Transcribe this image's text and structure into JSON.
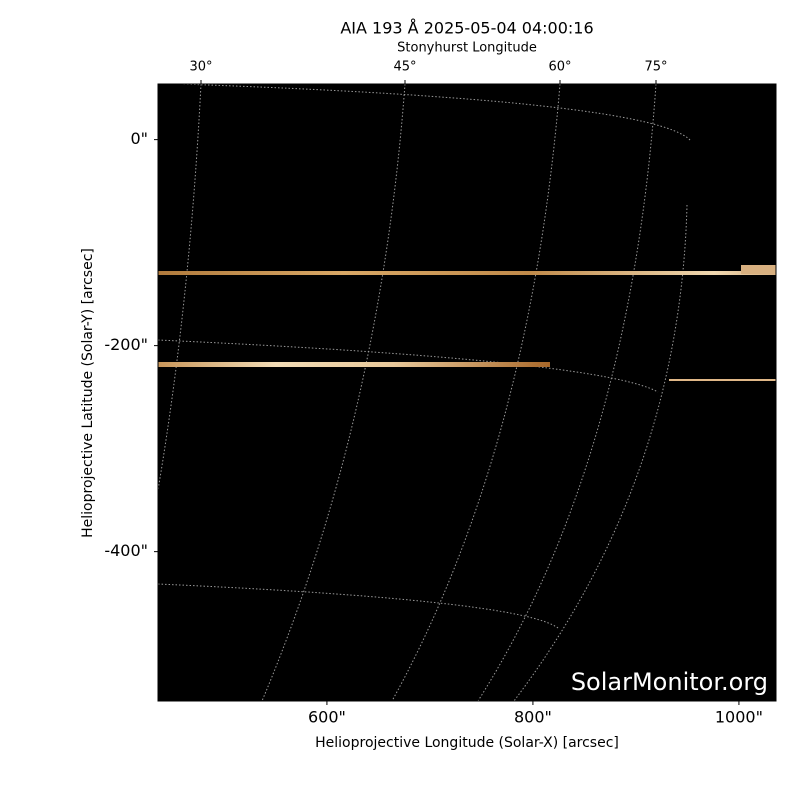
{
  "chart_data": {
    "type": "image",
    "title": "AIA 193 Å 2025-05-04 04:00:16",
    "top_axis_label": "Stonyhurst Longitude",
    "top_tick_labels": [
      "30°",
      "45°",
      "60°",
      "75°"
    ],
    "xlabel": "Helioprojective Longitude (Solar-X) [arcsec]",
    "ylabel": "Helioprojective Latitude (Solar-Y) [arcsec]",
    "xlim": [
      436,
      1036
    ],
    "ylim": [
      -545,
      54
    ],
    "xticks": [
      {
        "value": 600,
        "label": "600\""
      },
      {
        "value": 800,
        "label": "800\""
      },
      {
        "value": 1000,
        "label": "1000\""
      }
    ],
    "yticks": [
      {
        "value": 0,
        "label": "0\""
      },
      {
        "value": -200,
        "label": "-200\""
      },
      {
        "value": -400,
        "label": "-400\""
      }
    ],
    "watermark": "SolarMonitor.org"
  }
}
